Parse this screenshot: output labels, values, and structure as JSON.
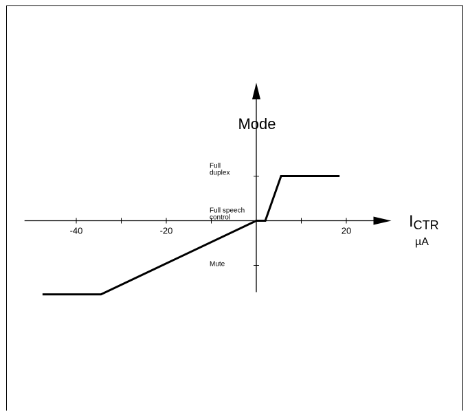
{
  "chart_data": {
    "type": "line",
    "y_axis_title": "Mode",
    "x_axis_title_main": "I",
    "x_axis_title_subscript": "CTR",
    "x_axis_unit": "µA",
    "x_ticks": [
      {
        "value": -40,
        "label": "-40"
      },
      {
        "value": -30,
        "label": ""
      },
      {
        "value": -20,
        "label": "-20"
      },
      {
        "value": -10,
        "label": ""
      },
      {
        "value": 10,
        "label": ""
      },
      {
        "value": 20,
        "label": "20"
      }
    ],
    "y_levels": [
      {
        "value": 1,
        "label_lines": [
          "Full",
          "duplex"
        ]
      },
      {
        "value": 0,
        "label_lines": [
          "Full speech",
          "control"
        ]
      },
      {
        "value": -1,
        "label_lines": [
          "Mute"
        ]
      }
    ],
    "xlim": [
      -51.5,
      30
    ],
    "ylim": [
      -1.6,
      2
    ],
    "series": [
      {
        "points": [
          [
            -47.5,
            -1.65
          ],
          [
            -34.5,
            -1.65
          ],
          [
            0,
            0
          ],
          [
            2,
            0
          ],
          [
            5.5,
            1
          ],
          [
            18.5,
            1
          ]
        ]
      }
    ],
    "colors": {
      "line": "#000000",
      "axis": "#000000",
      "frame": "#000000",
      "background": "#ffffff"
    }
  }
}
